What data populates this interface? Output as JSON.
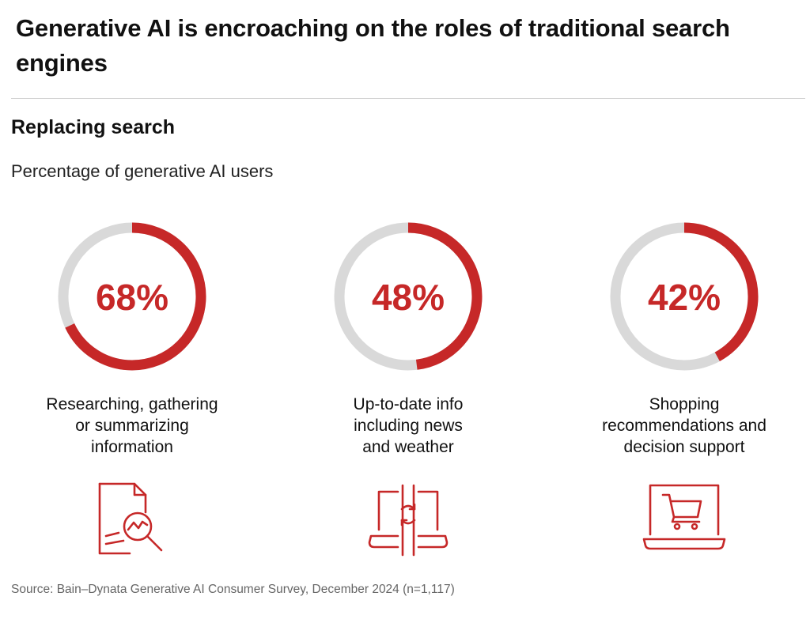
{
  "header": {
    "title": "Generative AI is encroaching on the roles of traditional search engines"
  },
  "section": {
    "heading": "Replacing search",
    "caption": "Percentage of generative AI users"
  },
  "colors": {
    "accent": "#c62828",
    "track": "#d9d9d9"
  },
  "chart_data": {
    "type": "pie",
    "title": "Replacing search",
    "subtitle": "Percentage of generative AI users",
    "items": [
      {
        "percent_label": "68%",
        "value": 68,
        "label_lines": [
          "Researching, gathering",
          "or summarizing",
          "information"
        ],
        "icon": "document-magnifier-icon"
      },
      {
        "percent_label": "48%",
        "value": 48,
        "label_lines": [
          "Up-to-date info",
          "including news",
          "and weather"
        ],
        "icon": "laptop-refresh-icon"
      },
      {
        "percent_label": "42%",
        "value": 42,
        "label_lines": [
          "Shopping",
          "recommendations and",
          "decision support"
        ],
        "icon": "laptop-cart-icon"
      }
    ]
  },
  "footer": {
    "source": "Source: Bain–Dynata Generative AI Consumer Survey, December 2024 (n=1,117)"
  }
}
